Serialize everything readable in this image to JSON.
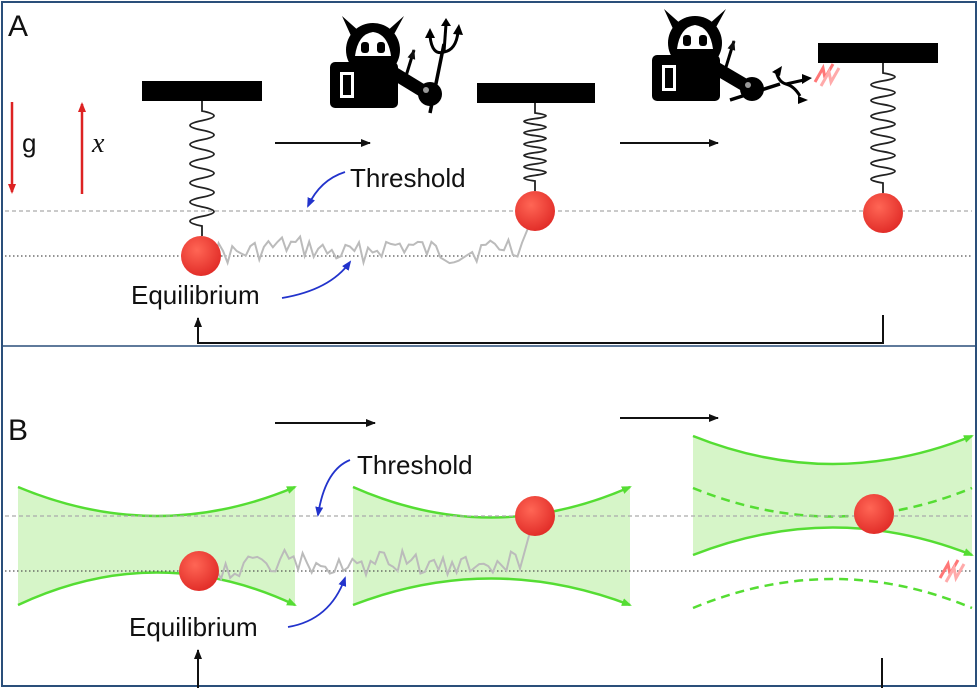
{
  "panel_a": {
    "letter": "A",
    "gravity_label": "g",
    "position_label": "x",
    "threshold_label": "Threshold",
    "equilibrium_label": "Equilibrium"
  },
  "panel_b": {
    "letter": "B",
    "threshold_label": "Threshold",
    "equilibrium_label": "Equilibrium"
  },
  "icons": {
    "demon": "demon-icon",
    "pitchfork": "pitchfork-icon",
    "heat_spark": "heat-spark-icon"
  },
  "colors": {
    "ball": "#e8312f",
    "trap_line": "#55dd33",
    "trap_fill": "#d6f5c8",
    "callout_arrow": "#2233cc",
    "red_arrow": "#dd2222",
    "trajectory": "#bbbbbb",
    "frame": "#2a4f7a"
  }
}
